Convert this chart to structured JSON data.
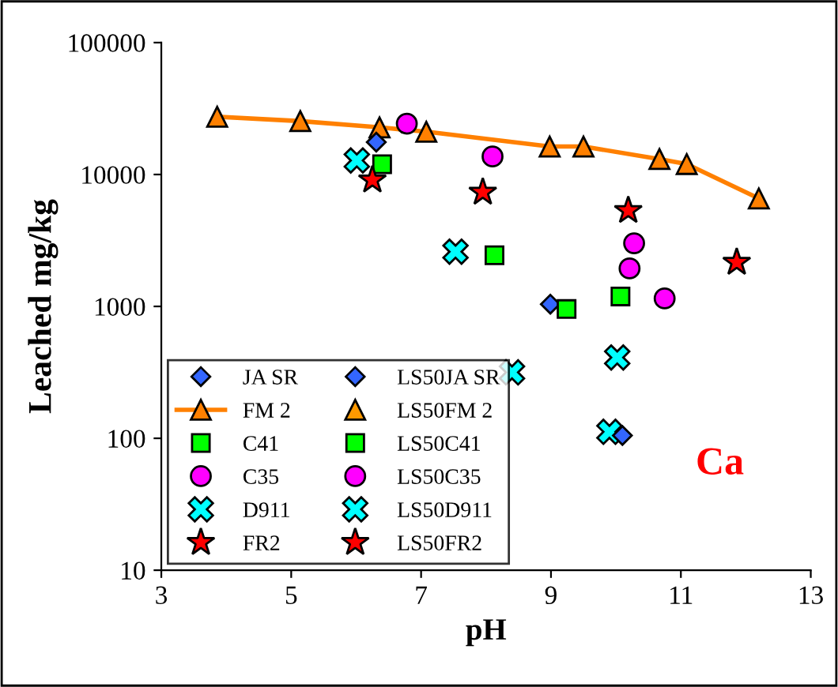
{
  "chart_data": {
    "type": "scatter",
    "xlabel": "pH",
    "ylabel": "Leached mg/kg",
    "log": "y",
    "xlim": [
      3,
      13
    ],
    "xticks": [
      3,
      5,
      7,
      9,
      11,
      13
    ],
    "ylim": [
      10,
      100000
    ],
    "yticks": [
      10,
      100,
      1000,
      10000,
      100000
    ],
    "grid": false,
    "legend": "bottom left",
    "annotations": [
      "Ca"
    ],
    "series": [
      {
        "name": "JA SR",
        "color": "#3366ff",
        "marker": "diamond",
        "x": [
          6.31,
          8.99
        ],
        "values": [
          17600,
          1040
        ]
      },
      {
        "name": "FM 2",
        "type": "line",
        "color": "#ff8000",
        "marker": "triangle",
        "x": [
          3.86,
          5.14,
          6.36,
          7.08,
          8.98,
          9.5,
          10.67,
          11.09,
          12.2
        ],
        "values": [
          27400,
          25400,
          22750,
          21100,
          16300,
          16300,
          13100,
          12000,
          6580
        ]
      },
      {
        "name": "C41",
        "color": "#00ff00",
        "marker": "square",
        "x": [
          6.4,
          8.13,
          9.24
        ],
        "values": [
          11970,
          2440,
          955
        ]
      },
      {
        "name": "C35",
        "color": "#ff00ff",
        "marker": "circle",
        "x": [
          6.78,
          8.1,
          10.21,
          10.75
        ],
        "values": [
          24300,
          13700,
          1940,
          1150
        ]
      },
      {
        "name": "D911",
        "color": "#00ffff",
        "marker": "cross",
        "x": [
          6.01,
          7.53,
          8.4,
          9.9
        ],
        "values": [
          12770,
          2600,
          316,
          112
        ]
      },
      {
        "name": "FR2",
        "color": "#ff0000",
        "marker": "star",
        "x": [
          6.25,
          7.95,
          11.86
        ],
        "values": [
          9080,
          7340,
          2160
        ]
      },
      {
        "name": "LS50JA SR",
        "color": "#3366ff",
        "marker": "diamond",
        "x": [
          10.1
        ],
        "values": [
          105
        ]
      },
      {
        "name": "LS50FM 2",
        "color": "#ff9900",
        "marker": "triangle"
      },
      {
        "name": "LS50C41",
        "color": "#00ff00",
        "marker": "square",
        "x": [
          10.07
        ],
        "values": [
          1190
        ]
      },
      {
        "name": "LS50C35",
        "color": "#ff00ff",
        "marker": "circle",
        "x": [
          10.28
        ],
        "values": [
          3010
        ]
      },
      {
        "name": "LS50D911",
        "color": "#00ffff",
        "marker": "cross",
        "x": [
          10.02
        ],
        "values": [
          410
        ]
      },
      {
        "name": "LS50FR2",
        "color": "#ff0000",
        "marker": "star",
        "x": [
          10.19
        ],
        "values": [
          5330
        ]
      }
    ]
  }
}
